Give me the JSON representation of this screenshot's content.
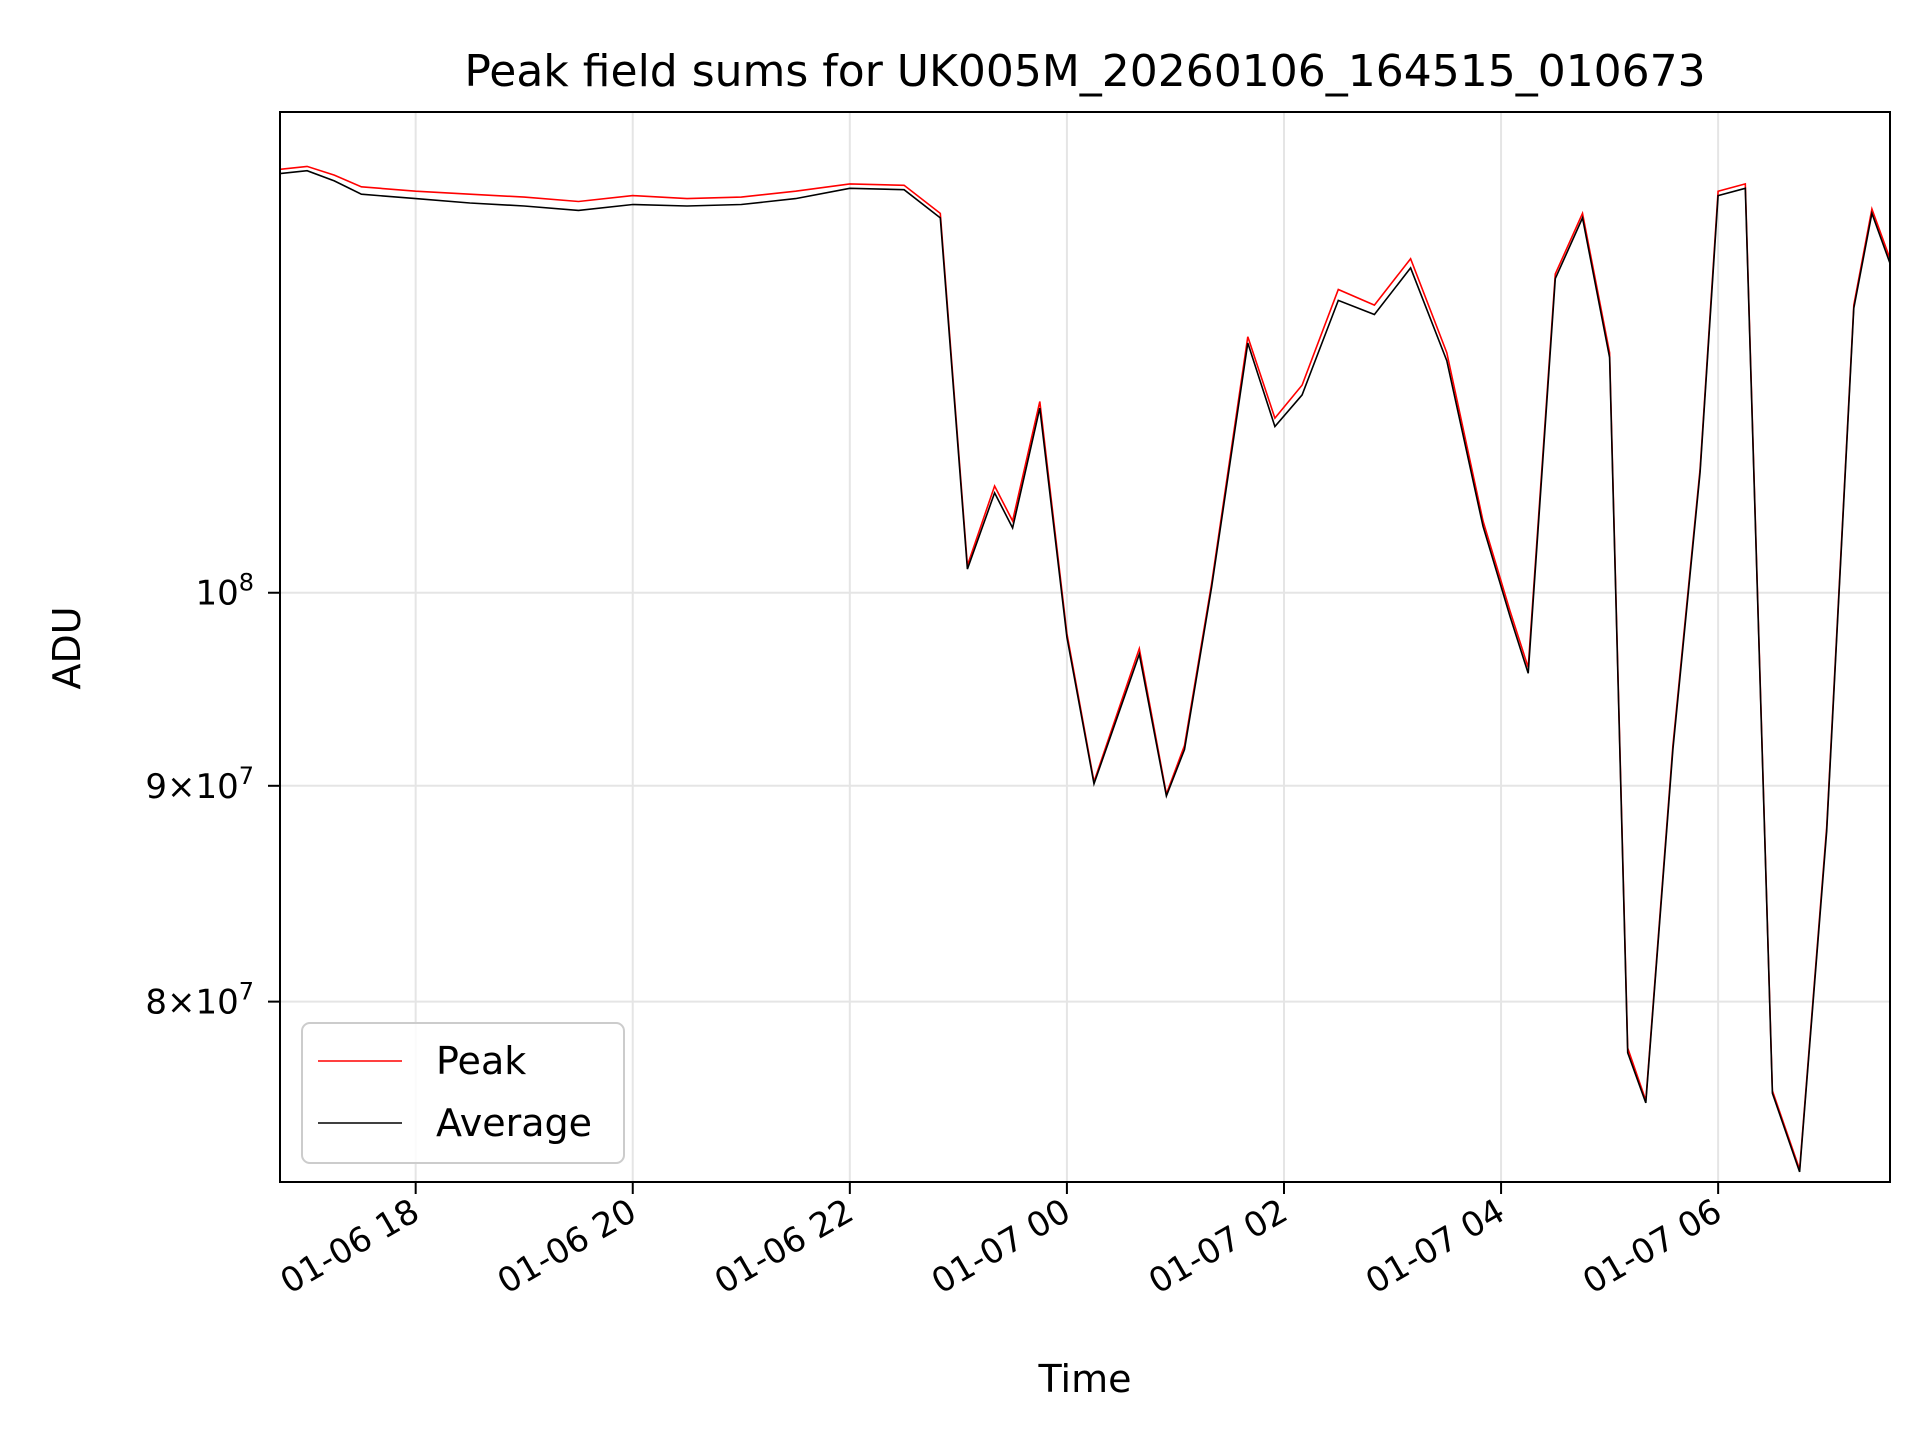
{
  "chart_data": {
    "type": "line",
    "title": "Peak field sums for UK005M_20260106_164515_010673",
    "xlabel": "Time",
    "ylabel": "ADU",
    "y_scale": "log",
    "grid": true,
    "legend_position": "lower-left",
    "xlim": [
      "2026-01-06 16:45",
      "2026-01-07 07:35"
    ],
    "ylim": [
      72500000,
      130000000
    ],
    "x_ticks": [
      {
        "value": "2026-01-06 18:00",
        "label": "01-06 18"
      },
      {
        "value": "2026-01-06 20:00",
        "label": "01-06 20"
      },
      {
        "value": "2026-01-06 22:00",
        "label": "01-06 22"
      },
      {
        "value": "2026-01-07 00:00",
        "label": "01-07 00"
      },
      {
        "value": "2026-01-07 02:00",
        "label": "01-07 02"
      },
      {
        "value": "2026-01-07 04:00",
        "label": "01-07 04"
      },
      {
        "value": "2026-01-07 06:00",
        "label": "01-07 06"
      }
    ],
    "y_ticks": [
      {
        "value": 100000000,
        "label": "10",
        "exp": "8"
      },
      {
        "value": 90000000,
        "label": "9×10",
        "exp": "7"
      },
      {
        "value": 80000000,
        "label": "8×10",
        "exp": "7"
      }
    ],
    "series": [
      {
        "name": "Peak",
        "color": "#ff0000",
        "x": [
          "2026-01-06 16:45",
          "2026-01-06 17:00",
          "2026-01-06 17:15",
          "2026-01-06 17:30",
          "2026-01-06 18:00",
          "2026-01-06 18:30",
          "2026-01-06 19:00",
          "2026-01-06 19:30",
          "2026-01-06 20:00",
          "2026-01-06 20:30",
          "2026-01-06 21:00",
          "2026-01-06 21:30",
          "2026-01-06 22:00",
          "2026-01-06 22:30",
          "2026-01-06 22:50",
          "2026-01-06 23:05",
          "2026-01-06 23:20",
          "2026-01-06 23:30",
          "2026-01-06 23:45",
          "2026-01-07 00:00",
          "2026-01-07 00:15",
          "2026-01-07 00:40",
          "2026-01-07 00:55",
          "2026-01-07 01:05",
          "2026-01-07 01:20",
          "2026-01-07 01:40",
          "2026-01-07 01:55",
          "2026-01-07 02:10",
          "2026-01-07 02:30",
          "2026-01-07 02:50",
          "2026-01-07 03:10",
          "2026-01-07 03:30",
          "2026-01-07 03:50",
          "2026-01-07 04:05",
          "2026-01-07 04:15",
          "2026-01-07 04:30",
          "2026-01-07 04:45",
          "2026-01-07 05:00",
          "2026-01-07 05:10",
          "2026-01-07 05:20",
          "2026-01-07 05:35",
          "2026-01-07 05:50",
          "2026-01-07 06:00",
          "2026-01-07 06:15",
          "2026-01-07 06:30",
          "2026-01-07 06:45",
          "2026-01-07 07:00",
          "2026-01-07 07:15",
          "2026-01-07 07:25",
          "2026-01-07 07:35"
        ],
        "values": [
          126000000,
          126200000,
          125600000,
          124800000,
          124500000,
          124300000,
          124100000,
          123800000,
          124200000,
          124000000,
          124100000,
          124500000,
          125000000,
          124900000,
          123000000,
          101500000,
          106000000,
          104000000,
          111000000,
          97800000,
          90200000,
          97000000,
          89600000,
          92000000,
          100500000,
          115000000,
          110000000,
          112000000,
          118000000,
          117000000,
          120000000,
          114000000,
          104000000,
          99000000,
          96000000,
          119000000,
          123000000,
          114000000,
          78000000,
          75800000,
          92000000,
          107000000,
          124500000,
          125000000,
          76200000,
          73000000,
          88000000,
          117000000,
          123300000,
          120000000
        ]
      },
      {
        "name": "Average",
        "color": "#000000",
        "x": [
          "2026-01-06 16:45",
          "2026-01-06 17:00",
          "2026-01-06 17:15",
          "2026-01-06 17:30",
          "2026-01-06 18:00",
          "2026-01-06 18:30",
          "2026-01-06 19:00",
          "2026-01-06 19:30",
          "2026-01-06 20:00",
          "2026-01-06 20:30",
          "2026-01-06 21:00",
          "2026-01-06 21:30",
          "2026-01-06 22:00",
          "2026-01-06 22:30",
          "2026-01-06 22:50",
          "2026-01-06 23:05",
          "2026-01-06 23:20",
          "2026-01-06 23:30",
          "2026-01-06 23:45",
          "2026-01-07 00:00",
          "2026-01-07 00:15",
          "2026-01-07 00:40",
          "2026-01-07 00:55",
          "2026-01-07 01:05",
          "2026-01-07 01:20",
          "2026-01-07 01:40",
          "2026-01-07 01:55",
          "2026-01-07 02:10",
          "2026-01-07 02:30",
          "2026-01-07 02:50",
          "2026-01-07 03:10",
          "2026-01-07 03:30",
          "2026-01-07 03:50",
          "2026-01-07 04:05",
          "2026-01-07 04:15",
          "2026-01-07 04:30",
          "2026-01-07 04:45",
          "2026-01-07 05:00",
          "2026-01-07 05:10",
          "2026-01-07 05:20",
          "2026-01-07 05:35",
          "2026-01-07 05:50",
          "2026-01-07 06:00",
          "2026-01-07 06:15",
          "2026-01-07 06:30",
          "2026-01-07 06:45",
          "2026-01-07 07:00",
          "2026-01-07 07:15",
          "2026-01-07 07:25",
          "2026-01-07 07:35"
        ],
        "values": [
          125700000,
          125900000,
          125200000,
          124300000,
          124000000,
          123700000,
          123500000,
          123200000,
          123600000,
          123500000,
          123600000,
          124000000,
          124700000,
          124600000,
          122700000,
          101300000,
          105600000,
          103600000,
          110600000,
          97600000,
          90100000,
          96700000,
          89500000,
          91800000,
          100300000,
          114600000,
          109500000,
          111400000,
          117300000,
          116400000,
          119400000,
          113500000,
          103700000,
          98700000,
          95700000,
          118700000,
          122700000,
          113700000,
          77800000,
          75700000,
          91800000,
          106800000,
          124200000,
          124700000,
          76100000,
          72900000,
          87800000,
          116800000,
          123000000,
          119700000
        ]
      }
    ]
  }
}
